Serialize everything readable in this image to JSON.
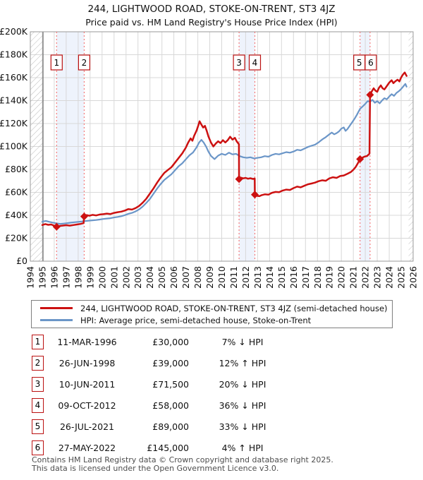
{
  "title": "244, LIGHTWOOD ROAD, STOKE-ON-TRENT, ST3 4JZ",
  "subtitle": "Price paid vs. HM Land Registry's House Price Index (HPI)",
  "legend": [
    {
      "label": "244, LIGHTWOOD ROAD, STOKE-ON-TRENT, ST3 4JZ (semi-detached house)",
      "color": "#cc1111"
    },
    {
      "label": "HPI: Average price, semi-detached house, Stoke-on-Trent",
      "color": "#6b96c8"
    }
  ],
  "transactions": [
    {
      "num": "1",
      "date": "11-MAR-1996",
      "price": "£30,000",
      "vs_hpi": "7% ↓ HPI"
    },
    {
      "num": "2",
      "date": "26-JUN-1998",
      "price": "£39,000",
      "vs_hpi": "12% ↑ HPI"
    },
    {
      "num": "3",
      "date": "10-JUN-2011",
      "price": "£71,500",
      "vs_hpi": "20% ↓ HPI"
    },
    {
      "num": "4",
      "date": "09-OCT-2012",
      "price": "£58,000",
      "vs_hpi": "36% ↓ HPI"
    },
    {
      "num": "5",
      "date": "26-JUL-2021",
      "price": "£89,000",
      "vs_hpi": "33% ↓ HPI"
    },
    {
      "num": "6",
      "date": "27-MAY-2022",
      "price": "£145,000",
      "vs_hpi": "4% ↑ HPI"
    }
  ],
  "footer": {
    "line1": "Contains HM Land Registry data © Crown copyright and database right 2025.",
    "line2": "This data is licensed under the Open Government Licence v3.0."
  },
  "chart_data": {
    "type": "line",
    "x_axis": {
      "min": 1994,
      "max": 2026,
      "tick_labels": [
        "1994",
        "1995",
        "1996",
        "1997",
        "1998",
        "1999",
        "2000",
        "2001",
        "2002",
        "2003",
        "2004",
        "2005",
        "2006",
        "2007",
        "2008",
        "2009",
        "2010",
        "2011",
        "2012",
        "2013",
        "2014",
        "2015",
        "2016",
        "2017",
        "2018",
        "2019",
        "2020",
        "2021",
        "2022",
        "2023",
        "2024",
        "2025",
        "2026"
      ]
    },
    "y_axis": {
      "min": 0,
      "max": 200000,
      "tick_interval": 20000,
      "tick_labels": [
        "£0",
        "£20K",
        "£40K",
        "£60K",
        "£80K",
        "£100K",
        "£120K",
        "£140K",
        "£160K",
        "£180K",
        "£200K"
      ]
    },
    "grid": true,
    "colors": {
      "grid": "#d8d8d8",
      "border": "#999999",
      "band": "#eef3fc",
      "dotted": "#f47070",
      "hatch": "#bbbbbb",
      "data_start_line": "#666666"
    },
    "shaded_bands": [
      [
        1996.2,
        1998.5
      ],
      [
        2011.45,
        2012.77
      ],
      [
        2021.56,
        2022.4
      ]
    ],
    "hatched_regions": [
      [
        1994,
        1995.06
      ],
      [
        2025.62,
        2026
      ]
    ],
    "sale_markers": [
      {
        "label": "1",
        "x": 1996.2,
        "y": 30000
      },
      {
        "label": "2",
        "x": 1998.5,
        "y": 39000
      },
      {
        "label": "3",
        "x": 2011.45,
        "y": 71500
      },
      {
        "label": "4",
        "x": 2012.77,
        "y": 58000
      },
      {
        "label": "5",
        "x": 2021.56,
        "y": 89000
      },
      {
        "label": "6",
        "x": 2022.4,
        "y": 145000
      }
    ],
    "series": [
      {
        "name": "HPI: Average price, semi-detached house, Stoke-on-Trent",
        "color": "#6b96c8",
        "width": 2.2,
        "points": [
          [
            1995.0,
            34500
          ],
          [
            1995.3,
            35100
          ],
          [
            1995.6,
            34300
          ],
          [
            1995.9,
            33600
          ],
          [
            1996.2,
            33000
          ],
          [
            1996.5,
            32500
          ],
          [
            1996.8,
            32800
          ],
          [
            1997.1,
            33200
          ],
          [
            1997.4,
            33600
          ],
          [
            1997.7,
            34000
          ],
          [
            1998.0,
            34300
          ],
          [
            1998.3,
            34600
          ],
          [
            1998.6,
            35000
          ],
          [
            1998.9,
            35300
          ],
          [
            1999.2,
            35600
          ],
          [
            1999.5,
            35900
          ],
          [
            1999.8,
            36300
          ],
          [
            2000.1,
            36800
          ],
          [
            2000.4,
            37200
          ],
          [
            2000.7,
            37500
          ],
          [
            2001.0,
            38100
          ],
          [
            2001.3,
            38600
          ],
          [
            2001.6,
            39200
          ],
          [
            2001.9,
            40100
          ],
          [
            2002.2,
            41300
          ],
          [
            2002.5,
            42100
          ],
          [
            2002.8,
            43400
          ],
          [
            2003.1,
            45200
          ],
          [
            2003.4,
            47700
          ],
          [
            2003.7,
            50800
          ],
          [
            2004.0,
            54300
          ],
          [
            2004.3,
            58800
          ],
          [
            2004.6,
            63300
          ],
          [
            2004.9,
            67300
          ],
          [
            2005.2,
            70800
          ],
          [
            2005.5,
            73300
          ],
          [
            2005.8,
            75800
          ],
          [
            2006.1,
            79300
          ],
          [
            2006.4,
            82800
          ],
          [
            2006.7,
            85300
          ],
          [
            2007.0,
            88800
          ],
          [
            2007.3,
            92300
          ],
          [
            2007.6,
            94800
          ],
          [
            2007.9,
            99300
          ],
          [
            2008.1,
            103300
          ],
          [
            2008.3,
            105800
          ],
          [
            2008.5,
            103300
          ],
          [
            2008.7,
            99800
          ],
          [
            2008.9,
            95300
          ],
          [
            2009.1,
            91800
          ],
          [
            2009.4,
            89000
          ],
          [
            2009.7,
            92000
          ],
          [
            2010.0,
            93600
          ],
          [
            2010.3,
            92600
          ],
          [
            2010.6,
            94600
          ],
          [
            2010.9,
            93100
          ],
          [
            2011.2,
            93600
          ],
          [
            2011.5,
            91600
          ],
          [
            2011.8,
            90600
          ],
          [
            2012.1,
            90100
          ],
          [
            2012.4,
            90600
          ],
          [
            2012.7,
            89600
          ],
          [
            2013.0,
            90100
          ],
          [
            2013.3,
            90600
          ],
          [
            2013.6,
            91600
          ],
          [
            2013.9,
            91100
          ],
          [
            2014.2,
            92600
          ],
          [
            2014.5,
            93600
          ],
          [
            2014.8,
            93100
          ],
          [
            2015.1,
            94100
          ],
          [
            2015.4,
            95100
          ],
          [
            2015.7,
            94600
          ],
          [
            2016.0,
            95600
          ],
          [
            2016.3,
            97100
          ],
          [
            2016.6,
            96600
          ],
          [
            2016.9,
            98100
          ],
          [
            2017.2,
            99600
          ],
          [
            2017.5,
            100600
          ],
          [
            2017.8,
            101600
          ],
          [
            2018.1,
            103600
          ],
          [
            2018.4,
            106100
          ],
          [
            2018.7,
            108100
          ],
          [
            2019.0,
            110600
          ],
          [
            2019.2,
            112100
          ],
          [
            2019.4,
            110600
          ],
          [
            2019.6,
            111600
          ],
          [
            2019.8,
            113100
          ],
          [
            2020.0,
            115600
          ],
          [
            2020.2,
            116600
          ],
          [
            2020.35,
            113600
          ],
          [
            2020.5,
            115100
          ],
          [
            2020.7,
            118100
          ],
          [
            2020.9,
            121100
          ],
          [
            2021.1,
            124100
          ],
          [
            2021.3,
            127600
          ],
          [
            2021.56,
            132800
          ],
          [
            2021.8,
            135100
          ],
          [
            2022.0,
            137100
          ],
          [
            2022.2,
            139600
          ],
          [
            2022.4,
            139100
          ],
          [
            2022.6,
            140600
          ],
          [
            2022.8,
            138100
          ],
          [
            2023.0,
            139600
          ],
          [
            2023.2,
            137600
          ],
          [
            2023.4,
            140100
          ],
          [
            2023.6,
            142100
          ],
          [
            2023.8,
            141100
          ],
          [
            2024.0,
            143600
          ],
          [
            2024.2,
            145600
          ],
          [
            2024.4,
            144100
          ],
          [
            2024.6,
            146600
          ],
          [
            2024.8,
            148100
          ],
          [
            2025.0,
            150100
          ],
          [
            2025.2,
            152600
          ],
          [
            2025.35,
            154600
          ],
          [
            2025.45,
            152100
          ]
        ]
      },
      {
        "name": "244, LIGHTWOOD ROAD, STOKE-ON-TRENT, ST3 4JZ (semi-detached house)",
        "color": "#cc1111",
        "width": 2.5,
        "points": [
          [
            1995.0,
            31500
          ],
          [
            1995.25,
            32400
          ],
          [
            1995.5,
            31700
          ],
          [
            1995.75,
            32000
          ],
          [
            1996.0,
            30900
          ],
          [
            1996.2,
            30000
          ],
          [
            1996.45,
            30700
          ],
          [
            1996.7,
            31000
          ],
          [
            1997.0,
            31400
          ],
          [
            1997.3,
            31000
          ],
          [
            1997.6,
            31500
          ],
          [
            1997.9,
            32000
          ],
          [
            1998.2,
            32500
          ],
          [
            1998.45,
            33200
          ],
          [
            1998.5,
            39000
          ],
          [
            1998.7,
            40200
          ],
          [
            1998.95,
            39600
          ],
          [
            1999.2,
            40400
          ],
          [
            1999.5,
            39900
          ],
          [
            1999.8,
            40700
          ],
          [
            2000.1,
            41000
          ],
          [
            2000.4,
            41500
          ],
          [
            2000.7,
            41100
          ],
          [
            2001.0,
            42100
          ],
          [
            2001.3,
            42700
          ],
          [
            2001.6,
            43200
          ],
          [
            2001.9,
            44100
          ],
          [
            2002.2,
            45400
          ],
          [
            2002.5,
            45000
          ],
          [
            2002.8,
            46300
          ],
          [
            2003.1,
            48200
          ],
          [
            2003.4,
            51000
          ],
          [
            2003.7,
            54500
          ],
          [
            2004.0,
            59000
          ],
          [
            2004.3,
            63500
          ],
          [
            2004.6,
            68500
          ],
          [
            2004.9,
            73000
          ],
          [
            2005.2,
            77000
          ],
          [
            2005.5,
            79500
          ],
          [
            2005.8,
            82000
          ],
          [
            2006.1,
            86000
          ],
          [
            2006.4,
            90000
          ],
          [
            2006.7,
            94000
          ],
          [
            2007.0,
            99000
          ],
          [
            2007.2,
            103500
          ],
          [
            2007.4,
            107000
          ],
          [
            2007.55,
            105000
          ],
          [
            2007.7,
            109500
          ],
          [
            2007.9,
            114000
          ],
          [
            2008.05,
            118500
          ],
          [
            2008.15,
            122000
          ],
          [
            2008.3,
            119000
          ],
          [
            2008.45,
            116500
          ],
          [
            2008.6,
            118000
          ],
          [
            2008.75,
            113500
          ],
          [
            2008.9,
            108500
          ],
          [
            2009.1,
            103500
          ],
          [
            2009.3,
            100000
          ],
          [
            2009.5,
            102500
          ],
          [
            2009.7,
            104500
          ],
          [
            2009.9,
            103000
          ],
          [
            2010.1,
            105500
          ],
          [
            2010.3,
            103500
          ],
          [
            2010.5,
            105500
          ],
          [
            2010.7,
            108500
          ],
          [
            2010.9,
            106000
          ],
          [
            2011.1,
            107500
          ],
          [
            2011.25,
            104500
          ],
          [
            2011.44,
            102000
          ],
          [
            2011.45,
            71500
          ],
          [
            2011.6,
            72800
          ],
          [
            2011.8,
            72200
          ],
          [
            2012.0,
            72600
          ],
          [
            2012.2,
            71900
          ],
          [
            2012.4,
            72300
          ],
          [
            2012.6,
            71700
          ],
          [
            2012.76,
            72000
          ],
          [
            2012.77,
            58000
          ],
          [
            2012.95,
            57000
          ],
          [
            2013.15,
            56700
          ],
          [
            2013.35,
            57600
          ],
          [
            2013.6,
            58300
          ],
          [
            2013.9,
            58000
          ],
          [
            2014.2,
            59600
          ],
          [
            2014.5,
            60400
          ],
          [
            2014.8,
            60100
          ],
          [
            2015.1,
            61600
          ],
          [
            2015.4,
            62400
          ],
          [
            2015.7,
            62100
          ],
          [
            2016.0,
            63700
          ],
          [
            2016.3,
            65000
          ],
          [
            2016.6,
            64400
          ],
          [
            2016.9,
            65700
          ],
          [
            2017.2,
            67000
          ],
          [
            2017.5,
            67700
          ],
          [
            2017.8,
            68500
          ],
          [
            2018.1,
            69700
          ],
          [
            2018.4,
            70500
          ],
          [
            2018.7,
            70100
          ],
          [
            2019.0,
            72200
          ],
          [
            2019.3,
            73200
          ],
          [
            2019.6,
            72600
          ],
          [
            2019.9,
            74200
          ],
          [
            2020.2,
            74700
          ],
          [
            2020.5,
            76200
          ],
          [
            2020.8,
            77800
          ],
          [
            2021.0,
            79700
          ],
          [
            2021.2,
            82200
          ],
          [
            2021.4,
            85700
          ],
          [
            2021.56,
            89000
          ],
          [
            2021.75,
            90200
          ],
          [
            2021.95,
            91200
          ],
          [
            2022.15,
            91700
          ],
          [
            2022.35,
            93700
          ],
          [
            2022.4,
            145000
          ],
          [
            2022.55,
            148200
          ],
          [
            2022.7,
            150700
          ],
          [
            2022.85,
            148700
          ],
          [
            2023.0,
            147700
          ],
          [
            2023.15,
            151200
          ],
          [
            2023.3,
            153200
          ],
          [
            2023.45,
            150700
          ],
          [
            2023.6,
            149700
          ],
          [
            2023.8,
            152700
          ],
          [
            2024.0,
            155700
          ],
          [
            2024.2,
            157700
          ],
          [
            2024.35,
            155200
          ],
          [
            2024.5,
            156700
          ],
          [
            2024.7,
            158200
          ],
          [
            2024.85,
            156700
          ],
          [
            2025.0,
            160200
          ],
          [
            2025.15,
            162700
          ],
          [
            2025.3,
            164500
          ],
          [
            2025.45,
            161500
          ]
        ]
      }
    ]
  }
}
